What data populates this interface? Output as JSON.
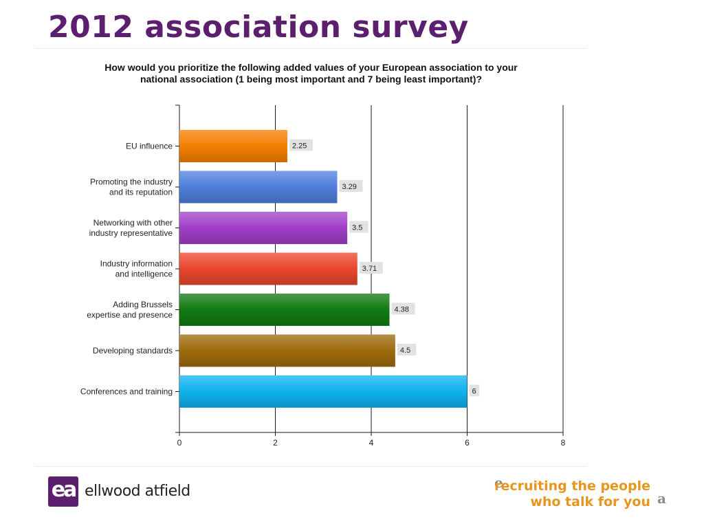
{
  "slide": {
    "title": "2012 association survey"
  },
  "chart_data": {
    "type": "bar",
    "orientation": "horizontal",
    "title_lines": [
      "How would you prioritize the following added values of your European association to your",
      "national association (1 being most important and 7 being least important)?"
    ],
    "categories": [
      [
        "EU influence"
      ],
      [
        "Promoting the industry",
        "and its reputation"
      ],
      [
        "Networking with other",
        "industry representative"
      ],
      [
        "Industry information",
        "and intelligence"
      ],
      [
        "Adding Brussels",
        "expertise and presence"
      ],
      [
        "Developing standards"
      ],
      [
        "Conferences and training"
      ]
    ],
    "values": [
      2.25,
      3.29,
      3.5,
      3.71,
      4.38,
      4.5,
      6
    ],
    "value_labels": [
      "2.25",
      "3.29",
      "3.5",
      "3.71",
      "4.38",
      "4.5",
      "6"
    ],
    "bar_colors": [
      "#f57f00",
      "#4f7fdc",
      "#a040c8",
      "#e9462c",
      "#127a12",
      "#9d6b0c",
      "#0fb2ee"
    ],
    "xlim": [
      0,
      8
    ],
    "x_ticks": [
      0,
      2,
      4,
      6,
      8
    ],
    "x_tick_labels": [
      "0",
      "2",
      "4",
      "6",
      "8"
    ],
    "vertical_gridlines": true
  },
  "footer": {
    "logo_mark": "ea",
    "brand_name": "ellwood atfield",
    "tagline_line1": "recruiting the people",
    "tagline_line2": "who talk for you",
    "tagline_mark_left": "e",
    "tagline_mark_right": "a",
    "brand_color": "#5b1f6e",
    "tagline_color": "#e8951f"
  }
}
